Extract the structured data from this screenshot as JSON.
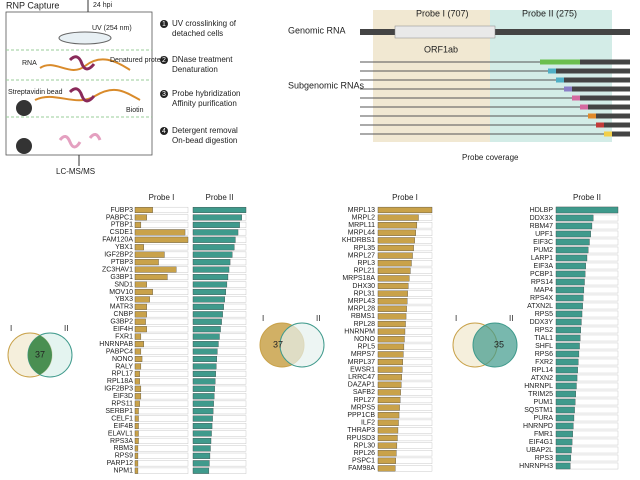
{
  "panel_a": {
    "title": "RNP Capture",
    "time": "24 hpi",
    "uv": "UV (254 nm)",
    "rna": "RNA",
    "protein": "Denatured protein",
    "bead": "Streptavidin bead",
    "biotin": "Biotin",
    "steps": [
      {
        "n": "1",
        "text": "UV crosslinking of detached cells"
      },
      {
        "n": "2",
        "text": "DNase treatment Denaturation"
      },
      {
        "n": "3",
        "text": "Probe hybridization Affinity purification"
      },
      {
        "n": "4",
        "text": "Detergent removal On-bead digestion"
      }
    ],
    "output": "LC-MS/MS"
  },
  "panel_b": {
    "probe1": "Probe I (707)",
    "probe2": "Probe II (275)",
    "genomic": "Genomic RNA",
    "orf": "ORF1ab",
    "subgenomic": "Subgenomic RNAs",
    "coverage": "Probe coverage"
  },
  "lists": [
    {
      "genes": [
        "FUBP3",
        "PABPC1",
        "PTBP1",
        "CSDE1",
        "FAM120A",
        "YBX1",
        "IGF2BP2",
        "PTBP3",
        "ZC3HAV1",
        "G3BP1",
        "SND1",
        "MOV10",
        "YBX3",
        "MATR3",
        "CNBP",
        "G3BP2",
        "EIF4H",
        "FXR1",
        "HNRNPAB",
        "PABPC4",
        "NONO",
        "RALY",
        "RPL17",
        "RPL18A",
        "IGF2BP3",
        "EIF3D",
        "RPS11",
        "SERBP1",
        "CELF1",
        "EIF4B",
        "ELAVL1",
        "RPS3A",
        "RBM3",
        "RPS9",
        "PARP12",
        "NPM1"
      ],
      "series": [
        {
          "name": "Probe I",
          "color": "#c9a24a",
          "values": [
            30,
            20,
            10,
            85,
            90,
            15,
            50,
            40,
            70,
            55,
            20,
            30,
            25,
            20,
            20,
            18,
            20,
            10,
            15,
            10,
            12,
            10,
            8,
            8,
            10,
            10,
            8,
            6,
            6,
            6,
            6,
            6,
            5,
            5,
            5,
            5
          ]
        },
        {
          "name": "Probe II",
          "color": "#3f9a8c",
          "values": [
            100,
            92,
            88,
            85,
            80,
            78,
            74,
            70,
            68,
            66,
            64,
            62,
            60,
            58,
            56,
            54,
            52,
            50,
            48,
            46,
            45,
            44,
            43,
            42,
            41,
            40,
            39,
            38,
            37,
            36,
            35,
            34,
            33,
            32,
            31,
            30
          ]
        }
      ],
      "venn": {
        "a": "I",
        "b": "II",
        "n": "37"
      }
    },
    {
      "genes": [
        "MRPL13",
        "MRPL2",
        "MRPL11",
        "MRPL44",
        "KHDRBS1",
        "RPL35",
        "MRPL27",
        "RPL3",
        "RPL21",
        "MRPS18A",
        "DHX30",
        "RPL31",
        "MRPL43",
        "MRPL28",
        "RBMS1",
        "RPL28",
        "HNRNPM",
        "NONO",
        "RPL5",
        "MRPS7",
        "MRPL37",
        "EWSR1",
        "LRRC47",
        "DAZAP1",
        "SAFB2",
        "RPL27",
        "MRPS5",
        "PPP1CB",
        "ILF2",
        "THRAP3",
        "RPUSD3",
        "RPL30",
        "RPL26",
        "PSPC1",
        "FAM98A"
      ],
      "series": [
        {
          "name": "Probe I",
          "color": "#c9a24a",
          "values": [
            100,
            75,
            72,
            70,
            68,
            66,
            64,
            62,
            60,
            58,
            56,
            55,
            54,
            53,
            52,
            51,
            50,
            49,
            48,
            47,
            46,
            45,
            44,
            43,
            42,
            41,
            40,
            39,
            38,
            37,
            36,
            35,
            34,
            33,
            32
          ]
        }
      ],
      "venn": {
        "a": "I",
        "b": "II",
        "n": "37"
      }
    },
    {
      "genes": [
        "HDLBP",
        "DDX3X",
        "RBM47",
        "UPF1",
        "EIF3C",
        "PUM2",
        "LARP1",
        "EIF3A",
        "PCBP1",
        "RPS14",
        "MAP4",
        "RPS4X",
        "ATXN2L",
        "RPS5",
        "DDX3Y",
        "RPS2",
        "TIAL1",
        "SHFL",
        "RPS6",
        "FXR2",
        "RPL14",
        "ATXN2",
        "HNRNPL",
        "TRIM25",
        "PUM1",
        "SQSTM1",
        "PURA",
        "HNRNPD",
        "FMR1",
        "EIF4G1",
        "UBAP2L",
        "RPS3",
        "HNRNPH3"
      ],
      "series": [
        {
          "name": "Probe II",
          "color": "#3f9a8c",
          "values": [
            100,
            60,
            58,
            56,
            54,
            52,
            50,
            48,
            47,
            46,
            45,
            44,
            43,
            42,
            41,
            40,
            39,
            38,
            37,
            36,
            35,
            34,
            33,
            32,
            31,
            30,
            29,
            28,
            27,
            26,
            25,
            24,
            23
          ]
        }
      ],
      "venn": {
        "a": "I",
        "b": "II",
        "n": "35"
      }
    }
  ]
}
